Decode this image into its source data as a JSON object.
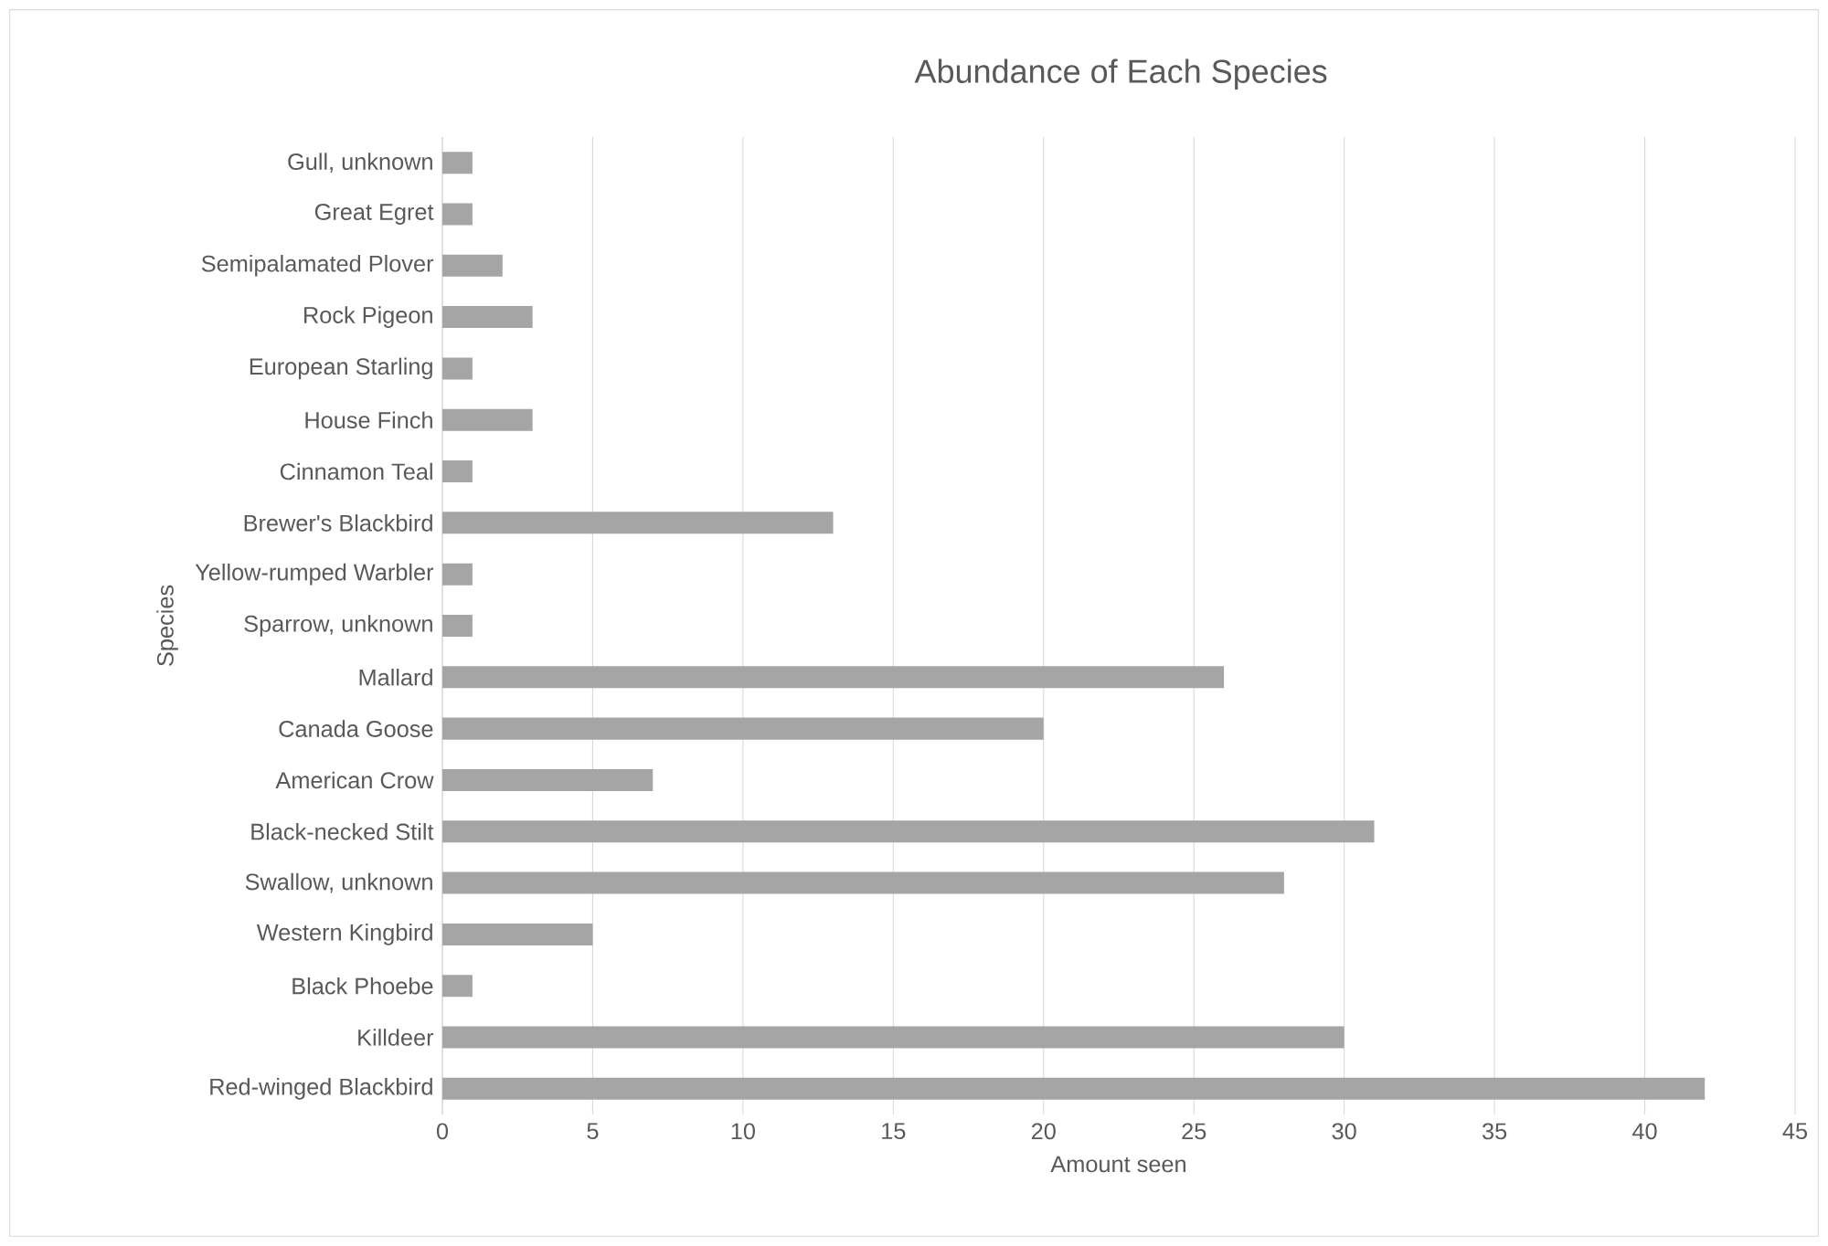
{
  "chart_data": {
    "type": "bar",
    "orientation": "horizontal",
    "title": "Abundance of Each Species",
    "xlabel": "Amount seen",
    "ylabel": "Species",
    "categories": [
      "Gull, unknown",
      "Great Egret",
      "Semipalamated Plover",
      "Rock Pigeon",
      "European Starling",
      "House Finch",
      "Cinnamon Teal",
      "Brewer's Blackbird",
      "Yellow-rumped Warbler",
      "Sparrow, unknown",
      "Mallard",
      "Canada Goose",
      "American Crow",
      "Black-necked Stilt",
      "Swallow, unknown",
      "Western Kingbird",
      "Black Phoebe",
      "Killdeer",
      "Red-winged Blackbird"
    ],
    "values": [
      1,
      1,
      2,
      3,
      1,
      3,
      1,
      13,
      1,
      1,
      26,
      20,
      7,
      31,
      28,
      5,
      1,
      30,
      42
    ],
    "color": "#a5a5a5",
    "xlim": [
      0,
      45
    ],
    "xticks": [
      0,
      5,
      10,
      15,
      20,
      25,
      30,
      35,
      40,
      45
    ],
    "grid": "x"
  }
}
